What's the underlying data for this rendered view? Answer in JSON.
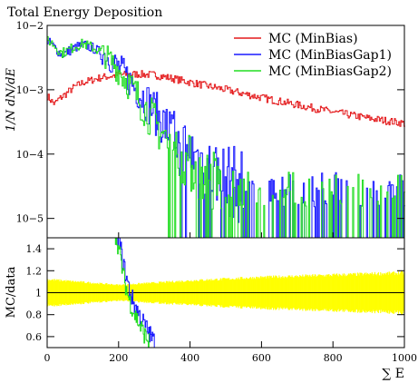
{
  "chart_data": [
    {
      "type": "line",
      "title": "Total Energy Deposition",
      "ylabel": "1/N dN/dE",
      "yscale": "log",
      "ylim": [
        5e-06,
        0.01
      ],
      "xlim": [
        0,
        1000
      ],
      "y_ticks": [
        {
          "value": 0.01,
          "label": "10−2"
        },
        {
          "value": 0.001,
          "label": "10−3"
        },
        {
          "value": 0.0001,
          "label": "10−4"
        },
        {
          "value": 1e-05,
          "label": "10−5"
        }
      ],
      "legend": "top-right",
      "series": [
        {
          "name": "MC (MinBias)",
          "color": "#e41a1c",
          "x": [
            0,
            10,
            20,
            30,
            50,
            75,
            100,
            150,
            200,
            250,
            300,
            350,
            400,
            500,
            600,
            700,
            800,
            900,
            1000
          ],
          "y": [
            0.0008,
            0.00068,
            0.0006,
            0.0007,
            0.00085,
            0.0011,
            0.0013,
            0.00155,
            0.0017,
            0.00175,
            0.0017,
            0.0015,
            0.0013,
            0.001,
            0.00075,
            0.00058,
            0.00045,
            0.00036,
            0.0003
          ]
        },
        {
          "name": "MC (MinBiasGap1)",
          "color": "#1a1aff",
          "x": [
            0,
            10,
            20,
            40,
            60,
            80,
            100,
            125,
            150,
            175,
            200,
            225,
            250,
            275,
            300,
            325,
            350,
            400,
            450,
            500,
            550
          ],
          "y": [
            0.0055,
            0.0052,
            0.0045,
            0.0035,
            0.004,
            0.0046,
            0.005,
            0.0045,
            0.0038,
            0.003,
            0.0022,
            0.0015,
            0.001,
            0.0007,
            0.00045,
            0.0003,
            0.0002,
            0.00011,
            6e-05,
            4e-05,
            3e-05
          ]
        },
        {
          "name": "MC (MinBiasGap2)",
          "color": "#22dd22",
          "x": [
            0,
            10,
            20,
            40,
            60,
            80,
            100,
            125,
            150,
            175,
            200,
            225,
            250,
            275,
            300,
            325,
            350,
            400,
            450,
            500
          ],
          "y": [
            0.0058,
            0.0055,
            0.0048,
            0.0037,
            0.0042,
            0.0048,
            0.0052,
            0.0046,
            0.0038,
            0.0029,
            0.002,
            0.0013,
            0.0008,
            0.0005,
            0.0003,
            0.0002,
            0.00013,
            7e-05,
            4e-05,
            3e-05
          ]
        }
      ]
    },
    {
      "type": "line",
      "ylabel": "MC/data",
      "xlabel": "∑ E",
      "xlim": [
        0,
        1000
      ],
      "ylim": [
        0.5,
        1.5
      ],
      "y_ticks": [
        0.6,
        0.8,
        1,
        1.2,
        1.4
      ],
      "x_ticks": [
        0,
        200,
        400,
        600,
        800,
        1000
      ],
      "reference_line": 1,
      "uncertainty_band": {
        "color": "#ffff00",
        "x": [
          0,
          200,
          400,
          600,
          800,
          1000
        ],
        "half_width": [
          0.12,
          0.07,
          0.11,
          0.14,
          0.16,
          0.18
        ]
      },
      "series": [
        {
          "name": "MC (MinBiasGap1)",
          "color": "#1a1aff",
          "x": [
            190,
            200,
            210,
            220,
            230,
            240,
            250,
            260,
            270,
            280,
            290,
            300
          ],
          "y": [
            1.6,
            1.5,
            1.3,
            1.15,
            1.02,
            0.92,
            0.85,
            0.78,
            0.72,
            0.66,
            0.6,
            0.55
          ]
        },
        {
          "name": "MC (MinBiasGap2)",
          "color": "#22dd22",
          "x": [
            185,
            195,
            205,
            215,
            225,
            235,
            245,
            255,
            265,
            275,
            285
          ],
          "y": [
            1.6,
            1.48,
            1.3,
            1.12,
            0.98,
            0.88,
            0.8,
            0.73,
            0.66,
            0.6,
            0.55
          ]
        }
      ]
    }
  ]
}
